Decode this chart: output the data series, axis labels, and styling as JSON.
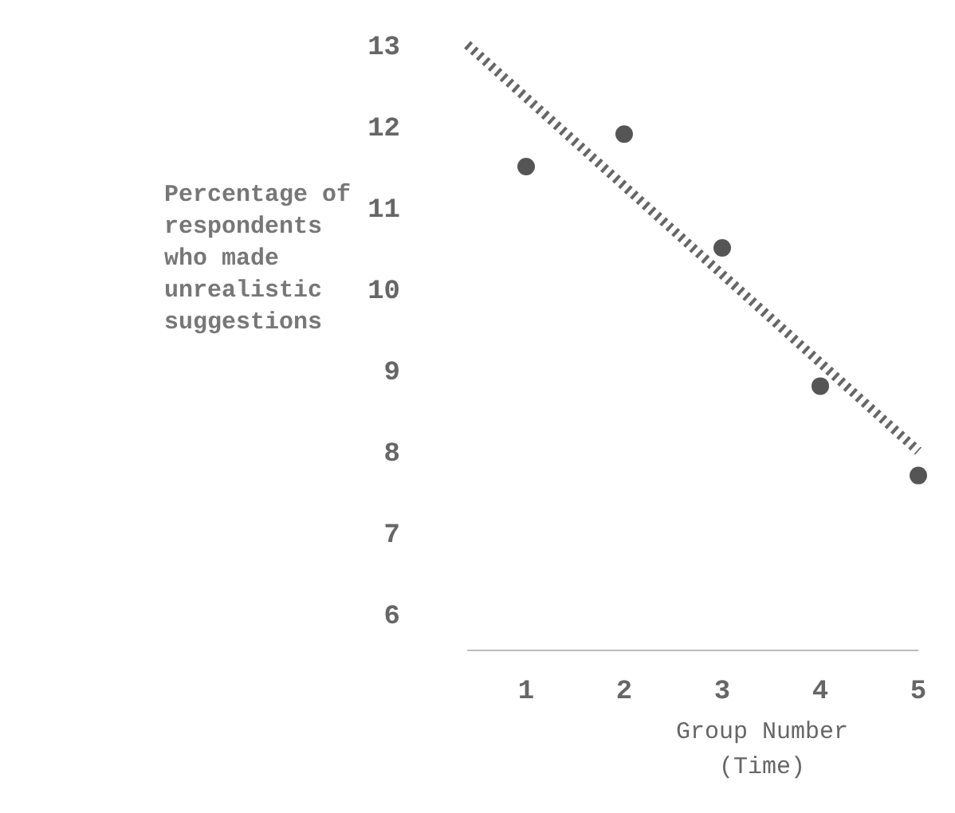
{
  "chart_data": {
    "type": "scatter",
    "xlabel": "Group Number\n(Time)",
    "ylabel": "Percentage of\nrespondents\nwho made\nunrealistic\nsuggestions",
    "series": [
      {
        "color": "#555555",
        "marker": "circle",
        "x": [
          1,
          2,
          3,
          4,
          5
        ],
        "values": [
          11.5,
          11.9,
          10.5,
          8.8,
          7.7
        ]
      },
      {
        "type": "line",
        "color": "#666666",
        "line_style": "dotted",
        "x": [
          0.4,
          5
        ],
        "values": [
          13,
          8
        ]
      }
    ],
    "xlim": [
      0.4,
      5
    ],
    "xticks": [
      1,
      2,
      3,
      4,
      5
    ],
    "ylim": [
      6,
      13
    ],
    "yticks": [
      6,
      7,
      8,
      9,
      10,
      11,
      12,
      13
    ]
  }
}
